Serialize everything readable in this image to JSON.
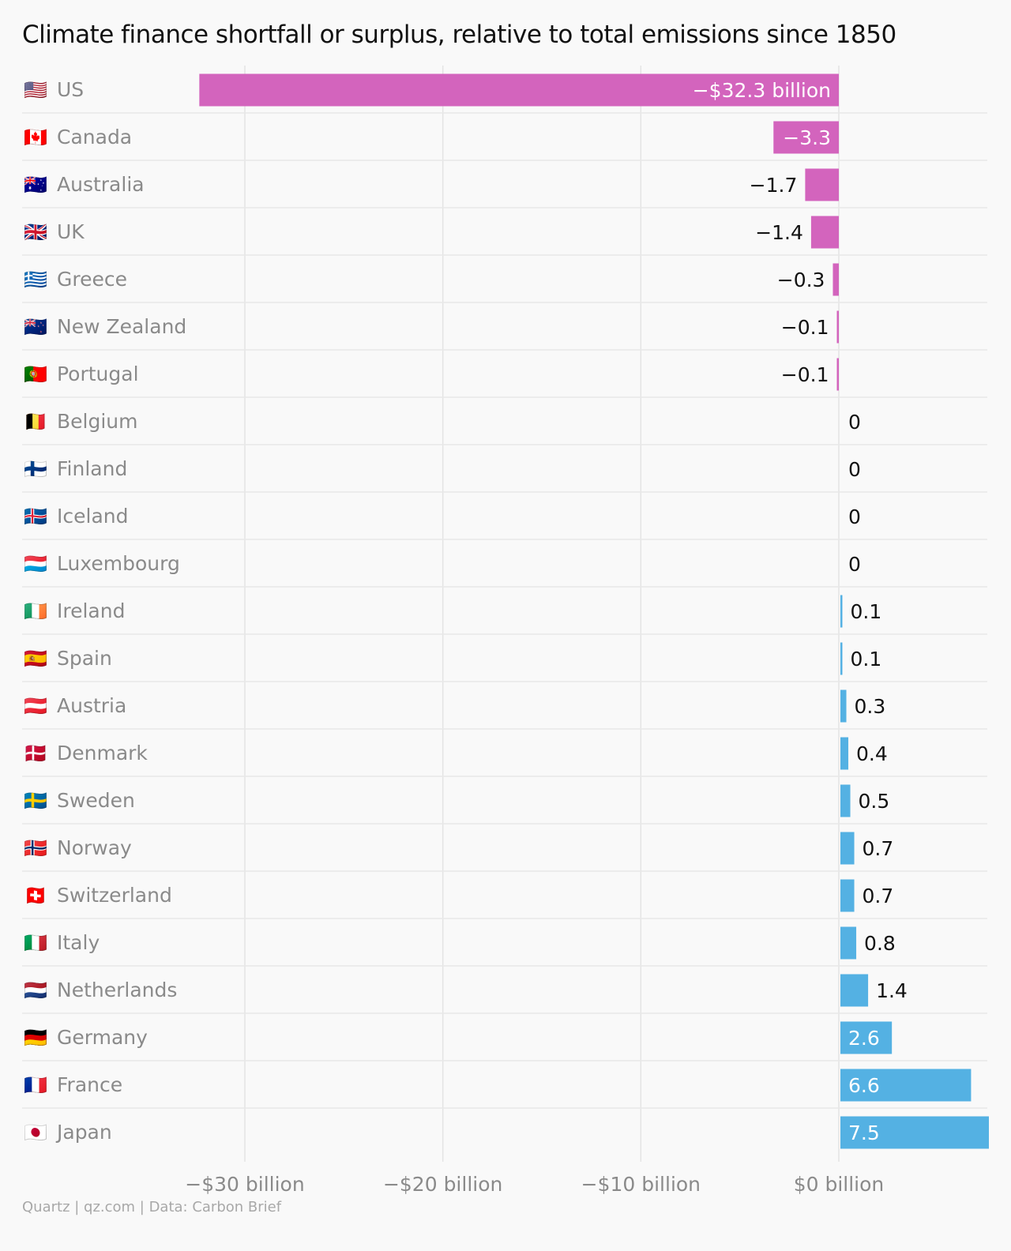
{
  "chart_data": {
    "type": "bar",
    "orientation": "horizontal",
    "title": "Climate finance shortfall or surplus, relative to total emissions since 1850",
    "xlim": [
      -35,
      7.5
    ],
    "grid": true,
    "categories": [
      "US",
      "Canada",
      "Australia",
      "UK",
      "Greece",
      "New Zealand",
      "Portugal",
      "Belgium",
      "Finland",
      "Iceland",
      "Luxembourg",
      "Ireland",
      "Spain",
      "Austria",
      "Denmark",
      "Sweden",
      "Norway",
      "Switzerland",
      "Italy",
      "Netherlands",
      "Germany",
      "France",
      "Japan"
    ],
    "flags": [
      "🇺🇸",
      "🇨🇦",
      "🇦🇺",
      "🇬🇧",
      "🇬🇷",
      "🇳🇿",
      "🇵🇹",
      "🇧🇪",
      "🇫🇮",
      "🇮🇸",
      "🇱🇺",
      "🇮🇪",
      "🇪🇸",
      "🇦🇹",
      "🇩🇰",
      "🇸🇪",
      "🇳🇴",
      "🇨🇭",
      "🇮🇹",
      "🇳🇱",
      "🇩🇪",
      "🇫🇷",
      "🇯🇵"
    ],
    "values": [
      -32.3,
      -3.3,
      -1.7,
      -1.4,
      -0.3,
      -0.1,
      -0.1,
      0,
      0,
      0,
      0,
      0.1,
      0.1,
      0.3,
      0.4,
      0.5,
      0.7,
      0.7,
      0.8,
      1.4,
      2.6,
      6.6,
      7.5
    ],
    "value_labels": [
      "−$32.3 billion",
      "−3.3",
      "−1.7",
      "−1.4",
      "−0.3",
      "−0.1",
      "−0.1",
      "0",
      "0",
      "0",
      "0",
      "0.1",
      "0.1",
      "0.3",
      "0.4",
      "0.5",
      "0.7",
      "0.7",
      "0.8",
      "1.4",
      "2.6",
      "6.6",
      "7.5"
    ],
    "x_ticks": [
      -30,
      -20,
      -10,
      0
    ],
    "x_tick_labels": [
      "−$30 billion",
      "−$20 billion",
      "−$10 billion",
      "$0 billion"
    ],
    "colors": {
      "negative": "#d364bd",
      "positive": "#54b1e3",
      "grid": "#e4e4e4",
      "row_divider": "#e8e8e8"
    }
  },
  "credit": "Quartz | qz.com | Data: Carbon Brief"
}
